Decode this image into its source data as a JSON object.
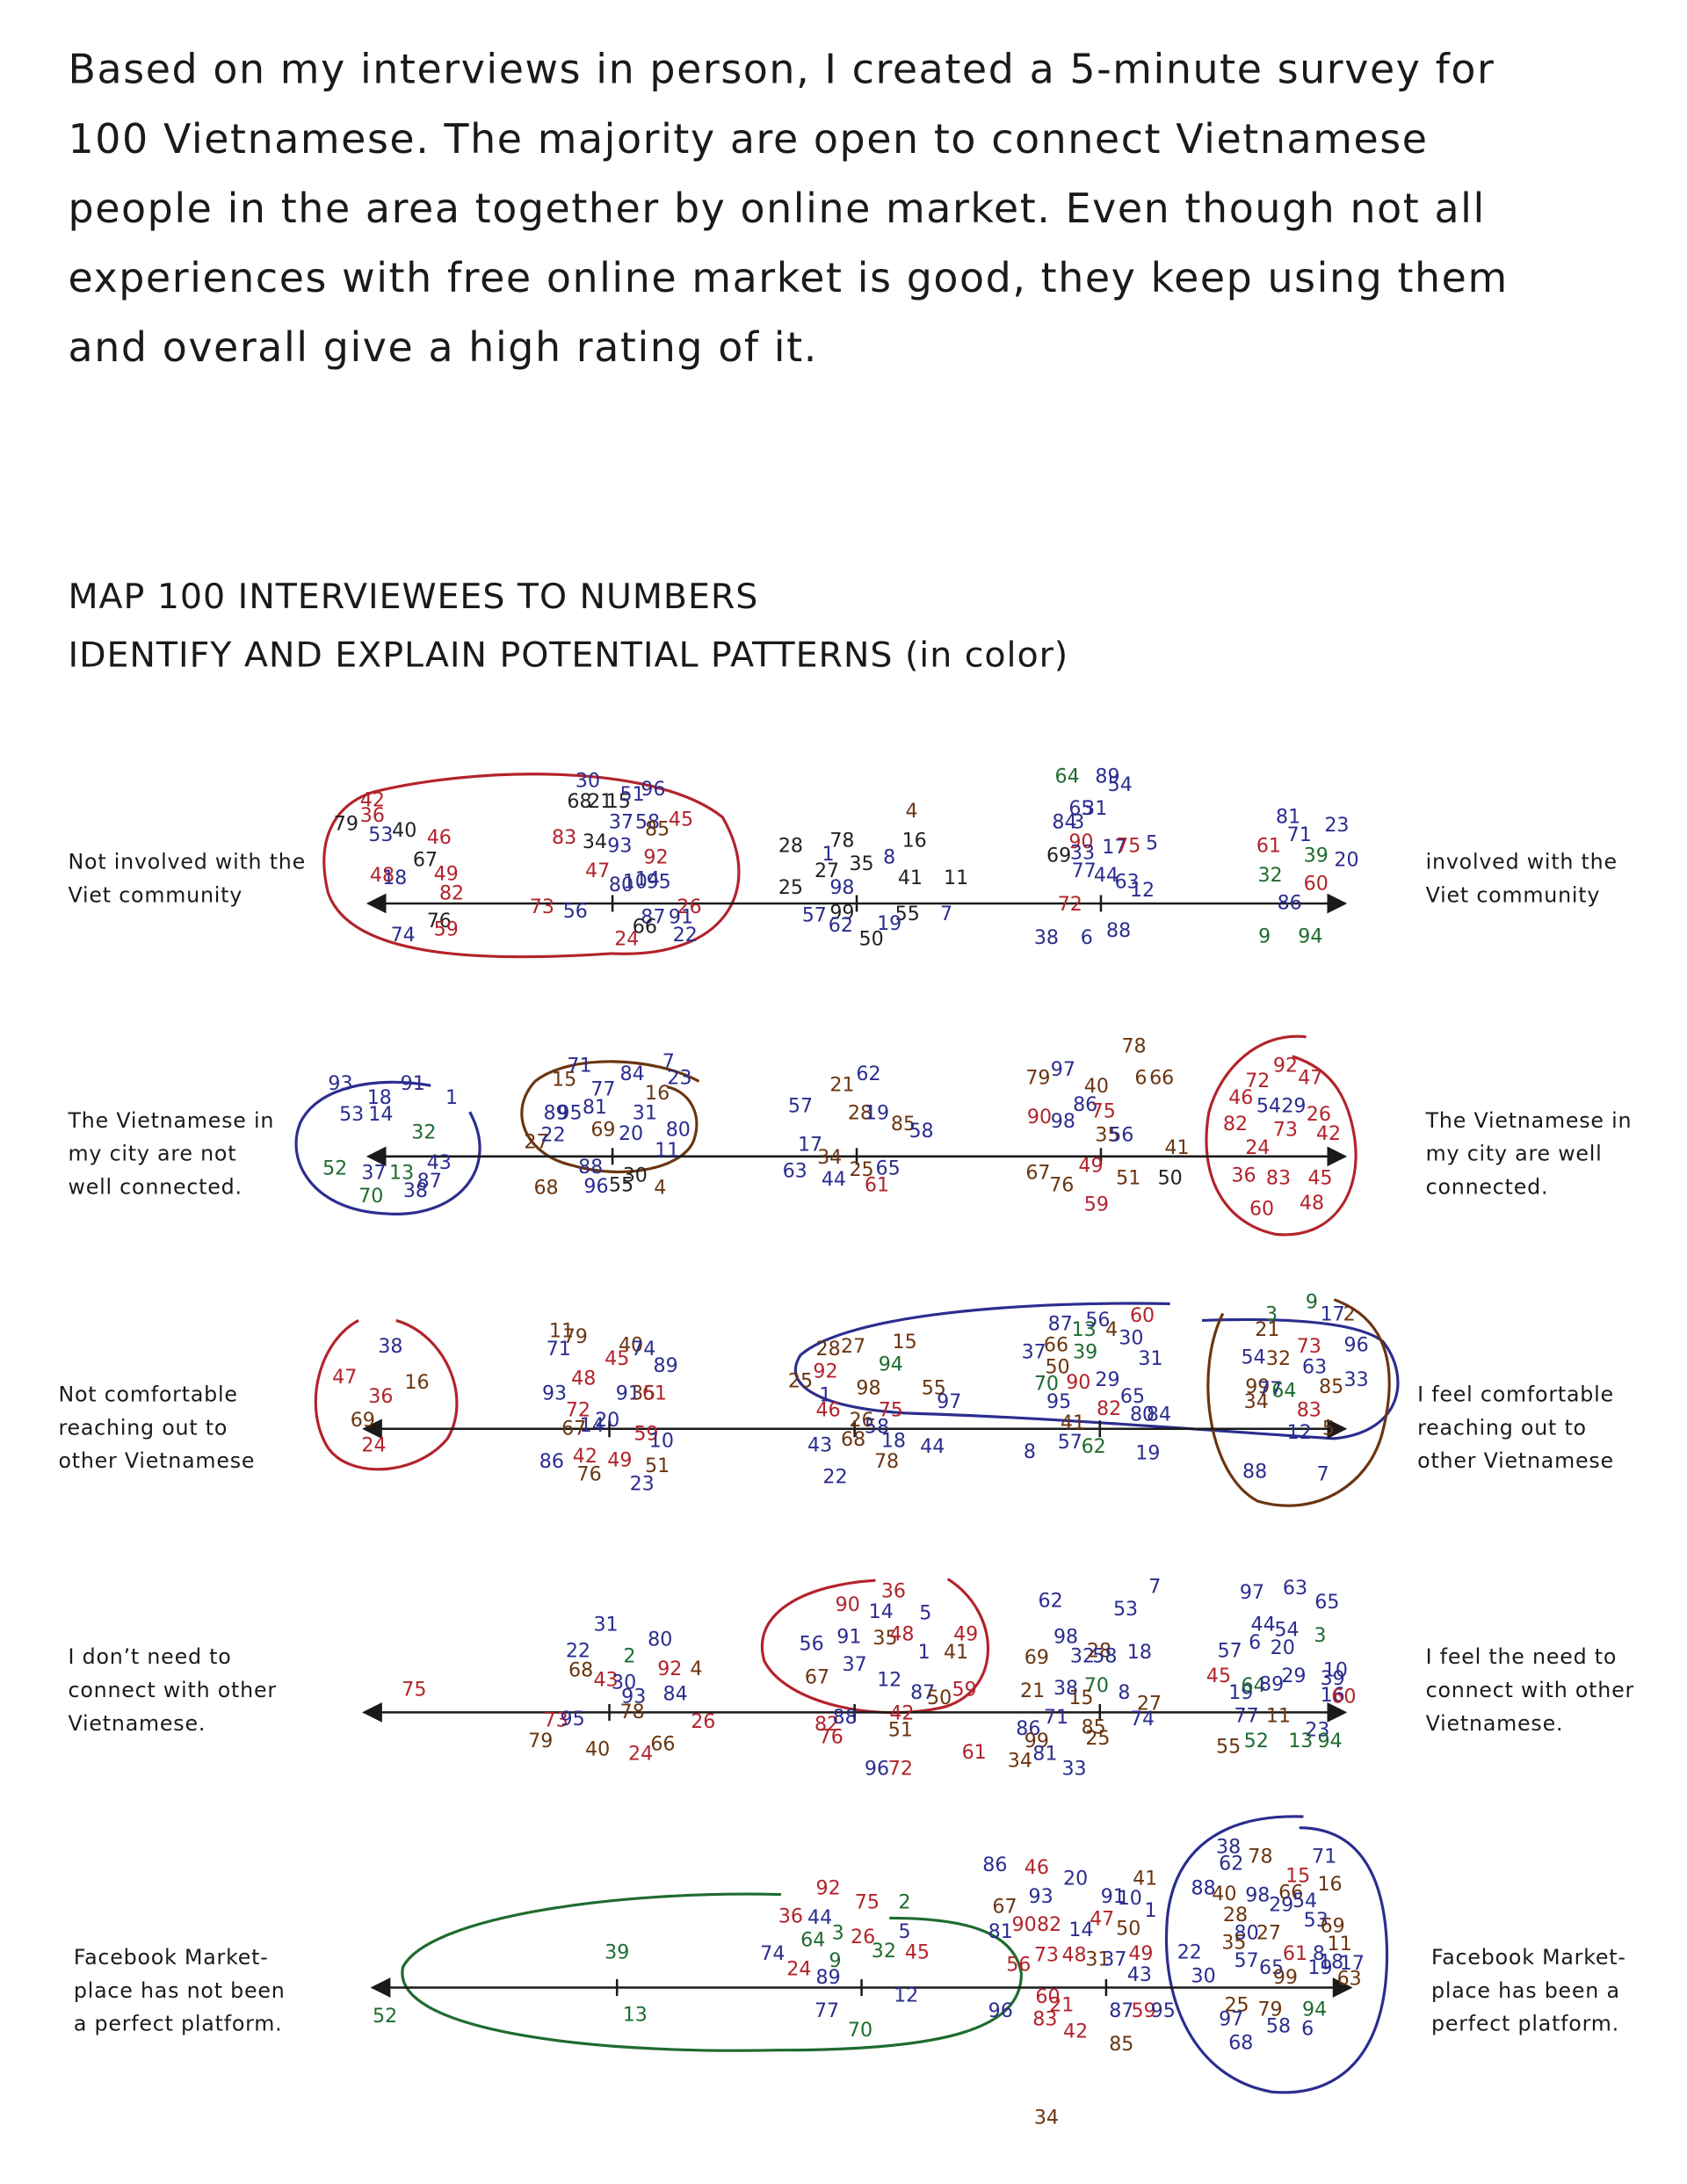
{
  "intro": {
    "lines": [
      "Based on my interviews in person, I created a 5-minute survey for",
      "100 Vietnamese. The majority are open to connect Vietnamese",
      "people in the area together by online market. Even though not all",
      "experiences with free online market is good, they keep using them",
      "and overall give a high rating of it."
    ]
  },
  "heading": {
    "lines": [
      "MAP 100 INTERVIEWEES TO NUMBERS",
      "IDENTIFY AND EXPLAIN POTENTIAL PATTERNS (in color)"
    ]
  },
  "scales": [
    {
      "left_label": [
        "Not involved with the",
        "Viet community"
      ],
      "right_label": [
        "involved with the",
        "Viet community"
      ],
      "numbers": [
        30,
        68,
        21,
        15,
        51,
        96,
        42,
        36,
        79,
        53,
        40,
        46,
        37,
        58,
        85,
        45,
        83,
        34,
        93,
        67,
        92,
        48,
        18,
        49,
        47,
        82,
        80,
        10,
        14,
        95,
        73,
        56,
        26,
        76,
        87,
        91,
        66,
        59,
        74,
        24,
        22,
        4,
        28,
        78,
        16,
        1,
        27,
        35,
        8,
        41,
        11,
        25,
        98,
        99,
        57,
        62,
        55,
        7,
        19,
        50,
        64,
        89,
        54,
        65,
        31,
        84,
        3,
        90,
        69,
        33,
        17,
        75,
        5,
        77,
        44,
        63,
        12,
        72,
        38,
        6,
        88,
        81,
        23,
        71,
        61,
        39,
        20,
        32,
        60,
        86,
        9,
        94
      ],
      "colors": [
        "#2b2d8f",
        "#222222",
        "#222222",
        "#222222",
        "#2b2d8f",
        "#2b2d8f",
        "#b3232b",
        "#b3232b",
        "#222222",
        "#2b2d8f",
        "#222222",
        "#b3232b",
        "#2b2d8f",
        "#2b2d8f",
        "#6b3510",
        "#b3232b",
        "#b3232b",
        "#222222",
        "#2b2d8f",
        "#222222",
        "#b3232b",
        "#b3232b",
        "#2b2d8f",
        "#b3232b",
        "#b3232b",
        "#b3232b",
        "#2b2d8f",
        "#2b2d8f",
        "#2b2d8f",
        "#2b2d8f",
        "#b3232b",
        "#2b2d8f",
        "#b3232b",
        "#222222",
        "#2b2d8f",
        "#2b2d8f",
        "#222222",
        "#b3232b",
        "#2b2d8f",
        "#b3232b",
        "#2b2d8f",
        "#6b3510",
        "#222222",
        "#222222",
        "#222222",
        "#2b2d8f",
        "#222222",
        "#222222",
        "#2b2d8f",
        "#222222",
        "#222222",
        "#222222",
        "#2b2d8f",
        "#222222",
        "#2b2d8f",
        "#2b2d8f",
        "#222222",
        "#2b2d8f",
        "#2b2d8f",
        "#222222",
        "#1e6b2e",
        "#2b2d8f",
        "#2b2d8f",
        "#2b2d8f",
        "#2b2d8f",
        "#2b2d8f",
        "#2b2d8f",
        "#b3232b",
        "#222222",
        "#2b2d8f",
        "#2b2d8f",
        "#b3232b",
        "#2b2d8f",
        "#2b2d8f",
        "#2b2d8f",
        "#2b2d8f",
        "#2b2d8f",
        "#b3232b",
        "#2b2d8f",
        "#2b2d8f",
        "#2b2d8f",
        "#2b2d8f",
        "#2b2d8f",
        "#2b2d8f",
        "#b3232b",
        "#1e6b2e",
        "#2b2d8f",
        "#1e6b2e",
        "#b3232b",
        "#2b2d8f",
        "#1e6b2e",
        "#1e6b2e"
      ]
    },
    {
      "left_label": [
        "The Vietnamese in",
        "my city are not",
        "well connected."
      ],
      "right_label": [
        "The Vietnamese in",
        "my city are well",
        "connected."
      ],
      "numbers": [
        93,
        91,
        18,
        1,
        53,
        14,
        32,
        52,
        37,
        13,
        43,
        87,
        70,
        38,
        15,
        71,
        77,
        84,
        7,
        23,
        16,
        89,
        95,
        81,
        31,
        27,
        22,
        69,
        20,
        80,
        11,
        88,
        30,
        68,
        96,
        55,
        4,
        21,
        62,
        57,
        28,
        19,
        85,
        58,
        17,
        34,
        25,
        65,
        63,
        44,
        61,
        78,
        79,
        97,
        40,
        6,
        66,
        86,
        90,
        98,
        75,
        35,
        56,
        41,
        67,
        76,
        49,
        51,
        50,
        59,
        92,
        47,
        72,
        46,
        54,
        29,
        26,
        82,
        73,
        42,
        24,
        36,
        83,
        45,
        60,
        48
      ],
      "colors": [
        "#2b2d8f",
        "#2b2d8f",
        "#2b2d8f",
        "#2b2d8f",
        "#2b2d8f",
        "#2b2d8f",
        "#1e6b2e",
        "#1e6b2e",
        "#2b2d8f",
        "#1e6b2e",
        "#2b2d8f",
        "#2b2d8f",
        "#1e6b2e",
        "#2b2d8f",
        "#6b3510",
        "#2b2d8f",
        "#2b2d8f",
        "#2b2d8f",
        "#2b2d8f",
        "#2b2d8f",
        "#6b3510",
        "#2b2d8f",
        "#2b2d8f",
        "#2b2d8f",
        "#2b2d8f",
        "#6b3510",
        "#2b2d8f",
        "#6b3510",
        "#2b2d8f",
        "#2b2d8f",
        "#2b2d8f",
        "#2b2d8f",
        "#222222",
        "#6b3510",
        "#2b2d8f",
        "#222222",
        "#6b3510",
        "#6b3510",
        "#2b2d8f",
        "#2b2d8f",
        "#6b3510",
        "#2b2d8f",
        "#6b3510",
        "#2b2d8f",
        "#2b2d8f",
        "#6b3510",
        "#6b3510",
        "#2b2d8f",
        "#2b2d8f",
        "#2b2d8f",
        "#b3232b",
        "#6b3510",
        "#6b3510",
        "#2b2d8f",
        "#6b3510",
        "#6b3510",
        "#6b3510",
        "#2b2d8f",
        "#b3232b",
        "#2b2d8f",
        "#b3232b",
        "#6b3510",
        "#2b2d8f",
        "#6b3510",
        "#6b3510",
        "#6b3510",
        "#b3232b",
        "#6b3510",
        "#222222",
        "#b3232b",
        "#b3232b",
        "#b3232b",
        "#b3232b",
        "#b3232b",
        "#2b2d8f",
        "#2b2d8f",
        "#b3232b",
        "#b3232b",
        "#b3232b",
        "#b3232b",
        "#b3232b",
        "#b3232b",
        "#b3232b",
        "#b3232b",
        "#b3232b",
        "#b3232b"
      ]
    },
    {
      "left_label": [
        "Not comfortable",
        "reaching out to",
        "other Vietnamese"
      ],
      "right_label": [
        "I feel comfortable",
        "reaching out to",
        "other Vietnamese"
      ],
      "numbers": [
        38,
        47,
        16,
        36,
        69,
        24,
        11,
        79,
        71,
        40,
        74,
        45,
        89,
        48,
        93,
        91,
        35,
        61,
        72,
        67,
        14,
        20,
        59,
        10,
        42,
        49,
        86,
        51,
        76,
        23,
        28,
        27,
        15,
        94,
        25,
        92,
        98,
        1,
        55,
        97,
        46,
        75,
        26,
        58,
        68,
        18,
        43,
        44,
        78,
        22,
        87,
        13,
        56,
        4,
        30,
        60,
        37,
        66,
        39,
        50,
        31,
        70,
        90,
        29,
        95,
        65,
        82,
        80,
        84,
        41,
        57,
        62,
        8,
        19,
        9,
        17,
        2,
        3,
        21,
        73,
        96,
        54,
        32,
        63,
        33,
        85,
        99,
        77,
        64,
        34,
        83,
        12,
        5,
        88,
        7
      ],
      "colors": [
        "#2b2d8f",
        "#b3232b",
        "#6b3510",
        "#b3232b",
        "#6b3510",
        "#b3232b",
        "#6b3510",
        "#6b3510",
        "#2b2d8f",
        "#6b3510",
        "#2b2d8f",
        "#b3232b",
        "#2b2d8f",
        "#b3232b",
        "#2b2d8f",
        "#2b2d8f",
        "#6b3510",
        "#b3232b",
        "#b3232b",
        "#6b3510",
        "#2b2d8f",
        "#2b2d8f",
        "#b3232b",
        "#2b2d8f",
        "#b3232b",
        "#b3232b",
        "#2b2d8f",
        "#6b3510",
        "#6b3510",
        "#2b2d8f",
        "#6b3510",
        "#6b3510",
        "#6b3510",
        "#1e6b2e",
        "#6b3510",
        "#b3232b",
        "#6b3510",
        "#2b2d8f",
        "#6b3510",
        "#2b2d8f",
        "#b3232b",
        "#b3232b",
        "#6b3510",
        "#2b2d8f",
        "#6b3510",
        "#2b2d8f",
        "#2b2d8f",
        "#2b2d8f",
        "#6b3510",
        "#2b2d8f",
        "#2b2d8f",
        "#1e6b2e",
        "#2b2d8f",
        "#6b3510",
        "#2b2d8f",
        "#b3232b",
        "#2b2d8f",
        "#6b3510",
        "#1e6b2e",
        "#6b3510",
        "#2b2d8f",
        "#1e6b2e",
        "#b3232b",
        "#2b2d8f",
        "#2b2d8f",
        "#2b2d8f",
        "#b3232b",
        "#2b2d8f",
        "#2b2d8f",
        "#6b3510",
        "#2b2d8f",
        "#1e6b2e",
        "#2b2d8f",
        "#2b2d8f",
        "#1e6b2e",
        "#2b2d8f",
        "#6b3510",
        "#1e6b2e",
        "#6b3510",
        "#b3232b",
        "#2b2d8f",
        "#2b2d8f",
        "#6b3510",
        "#2b2d8f",
        "#2b2d8f",
        "#6b3510",
        "#6b3510",
        "#2b2d8f",
        "#1e6b2e",
        "#6b3510",
        "#b3232b",
        "#2b2d8f",
        "#6b3510",
        "#2b2d8f",
        "#2b2d8f"
      ]
    },
    {
      "left_label": [
        "I don’t need to",
        "connect with other",
        "Vietnamese."
      ],
      "right_label": [
        "I feel the need to",
        "connect with other",
        "Vietnamese."
      ],
      "numbers": [
        75,
        31,
        80,
        22,
        2,
        68,
        92,
        4,
        43,
        30,
        93,
        84,
        78,
        26,
        73,
        95,
        79,
        40,
        24,
        66,
        36,
        90,
        14,
        5,
        56,
        91,
        35,
        48,
        49,
        1,
        41,
        37,
        67,
        12,
        87,
        50,
        59,
        82,
        76,
        88,
        42,
        51,
        96,
        72,
        61,
        7,
        62,
        53,
        98,
        69,
        32,
        28,
        58,
        18,
        21,
        38,
        70,
        15,
        8,
        27,
        74,
        86,
        71,
        85,
        99,
        25,
        81,
        34,
        33,
        97,
        63,
        65,
        44,
        54,
        3,
        6,
        57,
        20,
        45,
        19,
        64,
        89,
        29,
        10,
        39,
        16,
        60,
        77,
        11,
        23,
        55,
        52,
        13,
        94
      ],
      "colors": [
        "#b3232b",
        "#2b2d8f",
        "#2b2d8f",
        "#2b2d8f",
        "#1e6b2e",
        "#6b3510",
        "#b3232b",
        "#6b3510",
        "#b3232b",
        "#2b2d8f",
        "#2b2d8f",
        "#2b2d8f",
        "#6b3510",
        "#b3232b",
        "#b3232b",
        "#2b2d8f",
        "#6b3510",
        "#6b3510",
        "#b3232b",
        "#6b3510",
        "#b3232b",
        "#b3232b",
        "#2b2d8f",
        "#2b2d8f",
        "#2b2d8f",
        "#2b2d8f",
        "#6b3510",
        "#b3232b",
        "#b3232b",
        "#2b2d8f",
        "#6b3510",
        "#2b2d8f",
        "#6b3510",
        "#2b2d8f",
        "#2b2d8f",
        "#6b3510",
        "#b3232b",
        "#b3232b",
        "#b3232b",
        "#2b2d8f",
        "#b3232b",
        "#6b3510",
        "#2b2d8f",
        "#b3232b",
        "#b3232b",
        "#2b2d8f",
        "#2b2d8f",
        "#2b2d8f",
        "#2b2d8f",
        "#6b3510",
        "#2b2d8f",
        "#6b3510",
        "#2b2d8f",
        "#2b2d8f",
        "#6b3510",
        "#2b2d8f",
        "#1e6b2e",
        "#6b3510",
        "#2b2d8f",
        "#6b3510",
        "#2b2d8f",
        "#2b2d8f",
        "#2b2d8f",
        "#6b3510",
        "#6b3510",
        "#6b3510",
        "#2b2d8f",
        "#6b3510",
        "#2b2d8f",
        "#2b2d8f",
        "#2b2d8f",
        "#2b2d8f",
        "#2b2d8f",
        "#2b2d8f",
        "#1e6b2e",
        "#2b2d8f",
        "#2b2d8f",
        "#2b2d8f",
        "#b3232b",
        "#2b2d8f",
        "#1e6b2e",
        "#2b2d8f",
        "#2b2d8f",
        "#2b2d8f",
        "#2b2d8f",
        "#2b2d8f",
        "#b3232b",
        "#2b2d8f",
        "#6b3510",
        "#2b2d8f",
        "#6b3510",
        "#1e6b2e",
        "#1e6b2e",
        "#1e6b2e"
      ]
    },
    {
      "left_label": [
        "Facebook Market-",
        "place has not been",
        "a perfect platform."
      ],
      "right_label": [
        "Facebook Market-",
        "place has been a",
        "perfect platform."
      ],
      "numbers": [
        52,
        39,
        13,
        92,
        75,
        2,
        36,
        44,
        3,
        64,
        26,
        5,
        74,
        24,
        9,
        89,
        32,
        45,
        12,
        77,
        70,
        86,
        46,
        20,
        41,
        93,
        67,
        91,
        10,
        1,
        81,
        90,
        82,
        14,
        47,
        50,
        56,
        73,
        48,
        31,
        37,
        49,
        43,
        60,
        21,
        87,
        59,
        95,
        96,
        83,
        42,
        85,
        34,
        38,
        62,
        78,
        71,
        15,
        16,
        88,
        40,
        98,
        66,
        29,
        54,
        28,
        53,
        80,
        27,
        69,
        11,
        22,
        35,
        57,
        65,
        61,
        8,
        19,
        18,
        17,
        63,
        99,
        30,
        25,
        97,
        79,
        58,
        94,
        6,
        68
      ],
      "colors": [
        "#1e6b2e",
        "#1e6b2e",
        "#1e6b2e",
        "#b3232b",
        "#b3232b",
        "#1e6b2e",
        "#b3232b",
        "#2b2d8f",
        "#1e6b2e",
        "#1e6b2e",
        "#b3232b",
        "#2b2d8f",
        "#2b2d8f",
        "#b3232b",
        "#1e6b2e",
        "#2b2d8f",
        "#1e6b2e",
        "#b3232b",
        "#2b2d8f",
        "#2b2d8f",
        "#1e6b2e",
        "#2b2d8f",
        "#b3232b",
        "#2b2d8f",
        "#6b3510",
        "#2b2d8f",
        "#6b3510",
        "#2b2d8f",
        "#2b2d8f",
        "#2b2d8f",
        "#2b2d8f",
        "#b3232b",
        "#b3232b",
        "#2b2d8f",
        "#b3232b",
        "#6b3510",
        "#b3232b",
        "#b3232b",
        "#b3232b",
        "#6b3510",
        "#2b2d8f",
        "#b3232b",
        "#2b2d8f",
        "#b3232b",
        "#b3232b",
        "#2b2d8f",
        "#b3232b",
        "#2b2d8f",
        "#2b2d8f",
        "#b3232b",
        "#b3232b",
        "#6b3510",
        "#6b3510",
        "#2b2d8f",
        "#2b2d8f",
        "#6b3510",
        "#2b2d8f",
        "#b3232b",
        "#6b3510",
        "#2b2d8f",
        "#6b3510",
        "#2b2d8f",
        "#6b3510",
        "#2b2d8f",
        "#2b2d8f",
        "#6b3510",
        "#2b2d8f",
        "#2b2d8f",
        "#6b3510",
        "#6b3510",
        "#6b3510",
        "#2b2d8f",
        "#6b3510",
        "#2b2d8f",
        "#2b2d8f",
        "#b3232b",
        "#2b2d8f",
        "#2b2d8f",
        "#2b2d8f",
        "#2b2d8f",
        "#6b3510",
        "#6b3510",
        "#2b2d8f",
        "#6b3510",
        "#2b2d8f",
        "#6b3510",
        "#2b2d8f",
        "#1e6b2e",
        "#2b2d8f",
        "#2b2d8f"
      ]
    }
  ]
}
